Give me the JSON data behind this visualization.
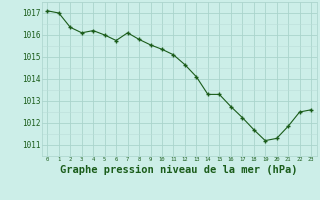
{
  "x": [
    0,
    1,
    2,
    3,
    4,
    5,
    6,
    7,
    8,
    9,
    10,
    11,
    12,
    13,
    14,
    15,
    16,
    17,
    18,
    19,
    20,
    21,
    22,
    23
  ],
  "y": [
    1017.1,
    1017.0,
    1016.35,
    1016.1,
    1016.2,
    1016.0,
    1015.75,
    1016.1,
    1015.8,
    1015.55,
    1015.35,
    1015.1,
    1014.65,
    1014.1,
    1013.3,
    1013.3,
    1012.75,
    1012.25,
    1011.7,
    1011.2,
    1011.3,
    1011.85,
    1012.5,
    1012.6
  ],
  "line_color": "#1a5c1a",
  "marker_color": "#1a5c1a",
  "bg_color": "#cceee8",
  "grid_color_major": "#aad4cc",
  "grid_color_minor": "#bbddd8",
  "title": "Graphe pression niveau de la mer (hPa)",
  "title_color": "#1a5c1a",
  "title_fontsize": 7.5,
  "ylabel_vals": [
    1011,
    1012,
    1013,
    1014,
    1015,
    1016,
    1017
  ],
  "ylim": [
    1010.5,
    1017.5
  ],
  "xlim": [
    -0.5,
    23.5
  ],
  "xlabel_vals": [
    0,
    1,
    2,
    3,
    4,
    5,
    6,
    7,
    8,
    9,
    10,
    11,
    12,
    13,
    14,
    15,
    16,
    17,
    18,
    19,
    20,
    21,
    22,
    23
  ]
}
